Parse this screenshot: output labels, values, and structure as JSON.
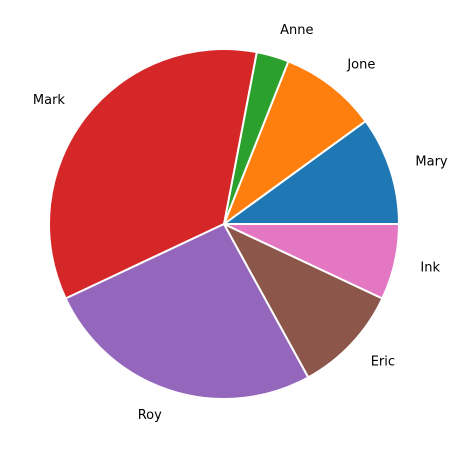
{
  "chart_data": {
    "type": "pie",
    "title": "",
    "labels": [
      "Mary",
      "Jone",
      "Anne",
      "Mark",
      "Roy",
      "Eric",
      "Ink"
    ],
    "values": [
      10,
      9,
      3,
      35,
      26,
      10,
      7
    ],
    "colors": [
      "#1f77b4",
      "#ff7f0e",
      "#2ca02c",
      "#d62728",
      "#9467bd",
      "#8c564b",
      "#e377c2"
    ],
    "start_angle_deg": 0,
    "direction": "counterclockwise",
    "legend": "none"
  }
}
